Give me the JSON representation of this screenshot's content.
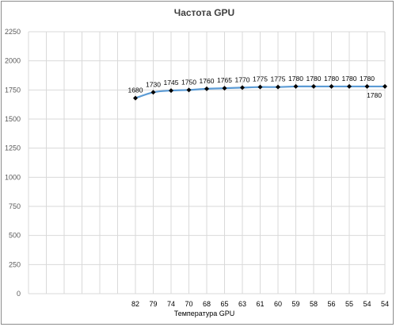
{
  "chart_data": {
    "type": "line",
    "title": "Частота GPU",
    "xlabel": "Температура  GPU",
    "ylabel": "",
    "categories": [
      "",
      "",
      "",
      "",
      "",
      "",
      "82",
      "79",
      "74",
      "70",
      "68",
      "65",
      "63",
      "61",
      "60",
      "59",
      "58",
      "56",
      "55",
      "54",
      "54"
    ],
    "series": [
      {
        "values": [
          null,
          null,
          null,
          null,
          null,
          null,
          1680,
          1730,
          1745,
          1750,
          1760,
          1765,
          1770,
          1775,
          1775,
          1780,
          1780,
          1780,
          1780,
          1780,
          1780
        ],
        "labels": [
          "",
          "",
          "",
          "",
          "",
          "",
          "1680",
          "1730",
          "1745",
          "1750",
          "1760",
          "1765",
          "1770",
          "1775",
          "1775",
          "1780",
          "1780",
          "1780",
          "1780",
          "1780",
          "1780"
        ]
      }
    ],
    "yticks": [
      "0",
      "250",
      "500",
      "750",
      "1000",
      "1250",
      "1500",
      "1750",
      "2000",
      "2250"
    ],
    "ylim": [
      0,
      2250
    ],
    "grid": true,
    "line_color": "#5b9bd5",
    "marker_color": "#000000",
    "legend": "none"
  }
}
